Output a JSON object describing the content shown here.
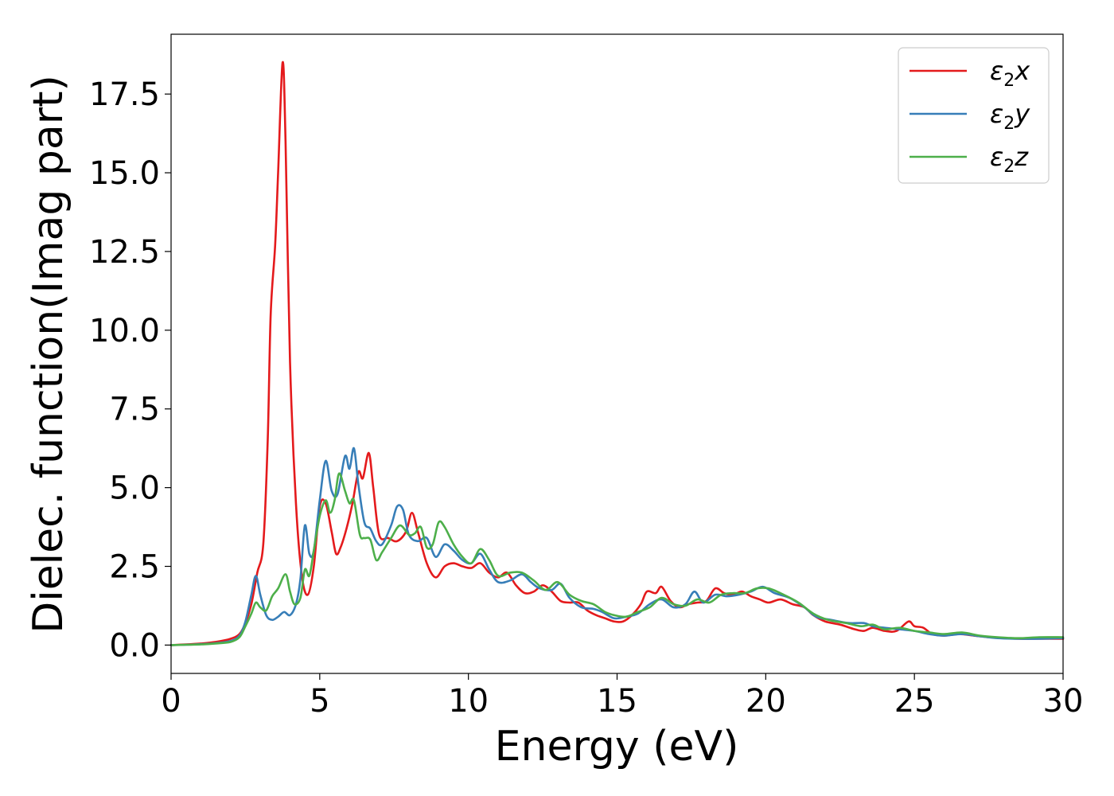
{
  "chart_data": {
    "type": "line",
    "xlabel": "Energy (eV)",
    "ylabel": "Dielec. function(Imag part)",
    "xlim": [
      0,
      30
    ],
    "ylim": [
      -0.9,
      19.4
    ],
    "xticks": [
      0,
      5,
      10,
      15,
      20,
      25,
      30
    ],
    "yticks": [
      0.0,
      2.5,
      5.0,
      7.5,
      10.0,
      12.5,
      15.0,
      17.5
    ],
    "xtick_labels": [
      "0",
      "5",
      "10",
      "15",
      "20",
      "25",
      "30"
    ],
    "ytick_labels": [
      "0.0",
      "2.5",
      "5.0",
      "7.5",
      "10.0",
      "12.5",
      "15.0",
      "17.5"
    ],
    "grid": false,
    "legend_position": "top-right",
    "series": [
      {
        "name": "ε2x",
        "legend_main": "ε",
        "legend_sub": "2",
        "legend_suffix": "x",
        "color": "#e41a1c",
        "points": [
          [
            0,
            0.0
          ],
          [
            0.5,
            0.02
          ],
          [
            1.0,
            0.05
          ],
          [
            1.5,
            0.1
          ],
          [
            2.0,
            0.2
          ],
          [
            2.3,
            0.35
          ],
          [
            2.5,
            0.7
          ],
          [
            2.7,
            1.3
          ],
          [
            2.9,
            2.3
          ],
          [
            3.1,
            3.2
          ],
          [
            3.25,
            6.5
          ],
          [
            3.35,
            10.5
          ],
          [
            3.5,
            12.7
          ],
          [
            3.6,
            15.0
          ],
          [
            3.75,
            18.5
          ],
          [
            3.85,
            16.0
          ],
          [
            4.0,
            9.0
          ],
          [
            4.2,
            4.5
          ],
          [
            4.4,
            2.2
          ],
          [
            4.6,
            1.6
          ],
          [
            4.8,
            2.5
          ],
          [
            5.0,
            4.4
          ],
          [
            5.2,
            4.5
          ],
          [
            5.4,
            3.6
          ],
          [
            5.55,
            2.9
          ],
          [
            5.7,
            3.1
          ],
          [
            5.9,
            3.7
          ],
          [
            6.1,
            4.5
          ],
          [
            6.3,
            5.5
          ],
          [
            6.45,
            5.3
          ],
          [
            6.65,
            6.1
          ],
          [
            6.8,
            5.0
          ],
          [
            7.0,
            3.5
          ],
          [
            7.3,
            3.4
          ],
          [
            7.6,
            3.3
          ],
          [
            7.9,
            3.6
          ],
          [
            8.1,
            4.2
          ],
          [
            8.3,
            3.6
          ],
          [
            8.6,
            2.6
          ],
          [
            8.9,
            2.15
          ],
          [
            9.2,
            2.5
          ],
          [
            9.5,
            2.6
          ],
          [
            9.8,
            2.5
          ],
          [
            10.1,
            2.45
          ],
          [
            10.4,
            2.6
          ],
          [
            10.7,
            2.3
          ],
          [
            11.0,
            2.15
          ],
          [
            11.3,
            2.3
          ],
          [
            11.6,
            1.9
          ],
          [
            11.9,
            1.65
          ],
          [
            12.2,
            1.7
          ],
          [
            12.5,
            1.9
          ],
          [
            12.8,
            1.7
          ],
          [
            13.1,
            1.4
          ],
          [
            13.4,
            1.35
          ],
          [
            13.7,
            1.35
          ],
          [
            14.0,
            1.1
          ],
          [
            14.3,
            0.95
          ],
          [
            14.6,
            0.85
          ],
          [
            14.9,
            0.75
          ],
          [
            15.2,
            0.75
          ],
          [
            15.5,
            0.95
          ],
          [
            15.8,
            1.3
          ],
          [
            16.0,
            1.7
          ],
          [
            16.3,
            1.65
          ],
          [
            16.5,
            1.85
          ],
          [
            16.8,
            1.4
          ],
          [
            17.1,
            1.2
          ],
          [
            17.4,
            1.3
          ],
          [
            17.7,
            1.35
          ],
          [
            18.0,
            1.4
          ],
          [
            18.3,
            1.8
          ],
          [
            18.6,
            1.65
          ],
          [
            18.9,
            1.6
          ],
          [
            19.2,
            1.7
          ],
          [
            19.5,
            1.55
          ],
          [
            19.8,
            1.45
          ],
          [
            20.1,
            1.35
          ],
          [
            20.5,
            1.45
          ],
          [
            20.9,
            1.3
          ],
          [
            21.3,
            1.2
          ],
          [
            21.6,
            0.95
          ],
          [
            22.0,
            0.75
          ],
          [
            22.5,
            0.65
          ],
          [
            23.0,
            0.5
          ],
          [
            23.3,
            0.45
          ],
          [
            23.6,
            0.55
          ],
          [
            24.0,
            0.45
          ],
          [
            24.4,
            0.45
          ],
          [
            24.8,
            0.75
          ],
          [
            25.0,
            0.6
          ],
          [
            25.3,
            0.55
          ],
          [
            25.6,
            0.35
          ],
          [
            26.0,
            0.3
          ],
          [
            26.5,
            0.35
          ],
          [
            27.0,
            0.3
          ],
          [
            27.5,
            0.25
          ],
          [
            28.0,
            0.22
          ],
          [
            28.5,
            0.2
          ],
          [
            29.0,
            0.2
          ],
          [
            29.5,
            0.2
          ],
          [
            30.0,
            0.2
          ]
        ]
      },
      {
        "name": "ε2y",
        "legend_main": "ε",
        "legend_sub": "2",
        "legend_suffix": "y",
        "color": "#377eb8",
        "points": [
          [
            0,
            0.0
          ],
          [
            0.5,
            0.01
          ],
          [
            1.0,
            0.03
          ],
          [
            1.5,
            0.06
          ],
          [
            2.0,
            0.13
          ],
          [
            2.3,
            0.3
          ],
          [
            2.5,
            0.75
          ],
          [
            2.7,
            1.6
          ],
          [
            2.85,
            2.2
          ],
          [
            3.0,
            1.6
          ],
          [
            3.2,
            0.95
          ],
          [
            3.4,
            0.8
          ],
          [
            3.6,
            0.9
          ],
          [
            3.8,
            1.05
          ],
          [
            4.0,
            0.95
          ],
          [
            4.2,
            1.3
          ],
          [
            4.35,
            2.1
          ],
          [
            4.5,
            3.8
          ],
          [
            4.65,
            2.9
          ],
          [
            4.8,
            3.0
          ],
          [
            5.0,
            4.6
          ],
          [
            5.2,
            5.85
          ],
          [
            5.4,
            4.9
          ],
          [
            5.6,
            4.8
          ],
          [
            5.85,
            6.0
          ],
          [
            6.0,
            5.6
          ],
          [
            6.15,
            6.25
          ],
          [
            6.3,
            5.1
          ],
          [
            6.5,
            3.9
          ],
          [
            6.7,
            3.7
          ],
          [
            6.9,
            3.3
          ],
          [
            7.1,
            3.2
          ],
          [
            7.4,
            3.8
          ],
          [
            7.6,
            4.4
          ],
          [
            7.8,
            4.3
          ],
          [
            8.0,
            3.5
          ],
          [
            8.3,
            3.3
          ],
          [
            8.6,
            3.4
          ],
          [
            8.9,
            2.8
          ],
          [
            9.2,
            3.2
          ],
          [
            9.5,
            3.0
          ],
          [
            9.8,
            2.7
          ],
          [
            10.1,
            2.6
          ],
          [
            10.4,
            2.9
          ],
          [
            10.7,
            2.4
          ],
          [
            11.0,
            2.0
          ],
          [
            11.4,
            2.05
          ],
          [
            11.8,
            2.25
          ],
          [
            12.1,
            2.0
          ],
          [
            12.4,
            1.8
          ],
          [
            12.8,
            1.75
          ],
          [
            13.1,
            1.95
          ],
          [
            13.4,
            1.5
          ],
          [
            13.8,
            1.2
          ],
          [
            14.2,
            1.15
          ],
          [
            14.5,
            1.05
          ],
          [
            14.9,
            0.85
          ],
          [
            15.3,
            0.9
          ],
          [
            15.7,
            1.0
          ],
          [
            16.1,
            1.3
          ],
          [
            16.5,
            1.45
          ],
          [
            16.9,
            1.2
          ],
          [
            17.3,
            1.3
          ],
          [
            17.6,
            1.7
          ],
          [
            17.9,
            1.35
          ],
          [
            18.3,
            1.6
          ],
          [
            18.7,
            1.55
          ],
          [
            19.1,
            1.6
          ],
          [
            19.5,
            1.7
          ],
          [
            19.9,
            1.85
          ],
          [
            20.3,
            1.65
          ],
          [
            20.8,
            1.5
          ],
          [
            21.3,
            1.2
          ],
          [
            21.7,
            0.9
          ],
          [
            22.2,
            0.8
          ],
          [
            22.8,
            0.7
          ],
          [
            23.3,
            0.7
          ],
          [
            23.6,
            0.6
          ],
          [
            24.0,
            0.55
          ],
          [
            24.5,
            0.5
          ],
          [
            25.0,
            0.45
          ],
          [
            25.5,
            0.35
          ],
          [
            26.0,
            0.3
          ],
          [
            26.6,
            0.35
          ],
          [
            27.2,
            0.28
          ],
          [
            27.8,
            0.22
          ],
          [
            28.5,
            0.2
          ],
          [
            29.2,
            0.2
          ],
          [
            30.0,
            0.22
          ]
        ]
      },
      {
        "name": "ε2z",
        "legend_main": "ε",
        "legend_sub": "2",
        "legend_suffix": "z",
        "color": "#4daf4a",
        "points": [
          [
            0,
            0.0
          ],
          [
            0.5,
            0.01
          ],
          [
            1.0,
            0.02
          ],
          [
            1.5,
            0.05
          ],
          [
            2.0,
            0.1
          ],
          [
            2.3,
            0.25
          ],
          [
            2.5,
            0.6
          ],
          [
            2.7,
            1.0
          ],
          [
            2.85,
            1.35
          ],
          [
            3.0,
            1.2
          ],
          [
            3.2,
            1.1
          ],
          [
            3.4,
            1.55
          ],
          [
            3.6,
            1.8
          ],
          [
            3.85,
            2.25
          ],
          [
            4.0,
            1.7
          ],
          [
            4.15,
            1.3
          ],
          [
            4.35,
            1.5
          ],
          [
            4.5,
            2.4
          ],
          [
            4.65,
            2.2
          ],
          [
            4.8,
            3.0
          ],
          [
            5.0,
            4.1
          ],
          [
            5.2,
            4.6
          ],
          [
            5.35,
            4.2
          ],
          [
            5.5,
            4.6
          ],
          [
            5.65,
            5.45
          ],
          [
            5.85,
            4.9
          ],
          [
            6.0,
            4.5
          ],
          [
            6.15,
            4.6
          ],
          [
            6.35,
            3.5
          ],
          [
            6.5,
            3.4
          ],
          [
            6.7,
            3.35
          ],
          [
            6.9,
            2.7
          ],
          [
            7.1,
            2.95
          ],
          [
            7.4,
            3.4
          ],
          [
            7.7,
            3.8
          ],
          [
            8.0,
            3.5
          ],
          [
            8.2,
            3.55
          ],
          [
            8.4,
            3.75
          ],
          [
            8.6,
            3.1
          ],
          [
            8.8,
            3.2
          ],
          [
            9.0,
            3.9
          ],
          [
            9.2,
            3.75
          ],
          [
            9.5,
            3.2
          ],
          [
            9.8,
            2.8
          ],
          [
            10.1,
            2.6
          ],
          [
            10.4,
            3.05
          ],
          [
            10.7,
            2.7
          ],
          [
            11.0,
            2.2
          ],
          [
            11.4,
            2.3
          ],
          [
            11.8,
            2.3
          ],
          [
            12.2,
            2.05
          ],
          [
            12.6,
            1.75
          ],
          [
            13.0,
            2.0
          ],
          [
            13.4,
            1.6
          ],
          [
            13.8,
            1.4
          ],
          [
            14.2,
            1.3
          ],
          [
            14.6,
            1.05
          ],
          [
            14.9,
            0.95
          ],
          [
            15.3,
            0.9
          ],
          [
            15.7,
            1.05
          ],
          [
            16.1,
            1.2
          ],
          [
            16.5,
            1.5
          ],
          [
            16.9,
            1.3
          ],
          [
            17.3,
            1.25
          ],
          [
            17.7,
            1.45
          ],
          [
            18.1,
            1.35
          ],
          [
            18.5,
            1.6
          ],
          [
            18.9,
            1.65
          ],
          [
            19.3,
            1.65
          ],
          [
            19.7,
            1.8
          ],
          [
            20.1,
            1.8
          ],
          [
            20.6,
            1.6
          ],
          [
            21.1,
            1.35
          ],
          [
            21.6,
            1.0
          ],
          [
            22.1,
            0.8
          ],
          [
            22.7,
            0.7
          ],
          [
            23.2,
            0.6
          ],
          [
            23.6,
            0.65
          ],
          [
            24.0,
            0.5
          ],
          [
            24.5,
            0.55
          ],
          [
            25.0,
            0.45
          ],
          [
            25.5,
            0.4
          ],
          [
            26.0,
            0.35
          ],
          [
            26.6,
            0.4
          ],
          [
            27.2,
            0.3
          ],
          [
            27.8,
            0.25
          ],
          [
            28.5,
            0.22
          ],
          [
            29.2,
            0.25
          ],
          [
            30.0,
            0.25
          ]
        ]
      }
    ]
  }
}
